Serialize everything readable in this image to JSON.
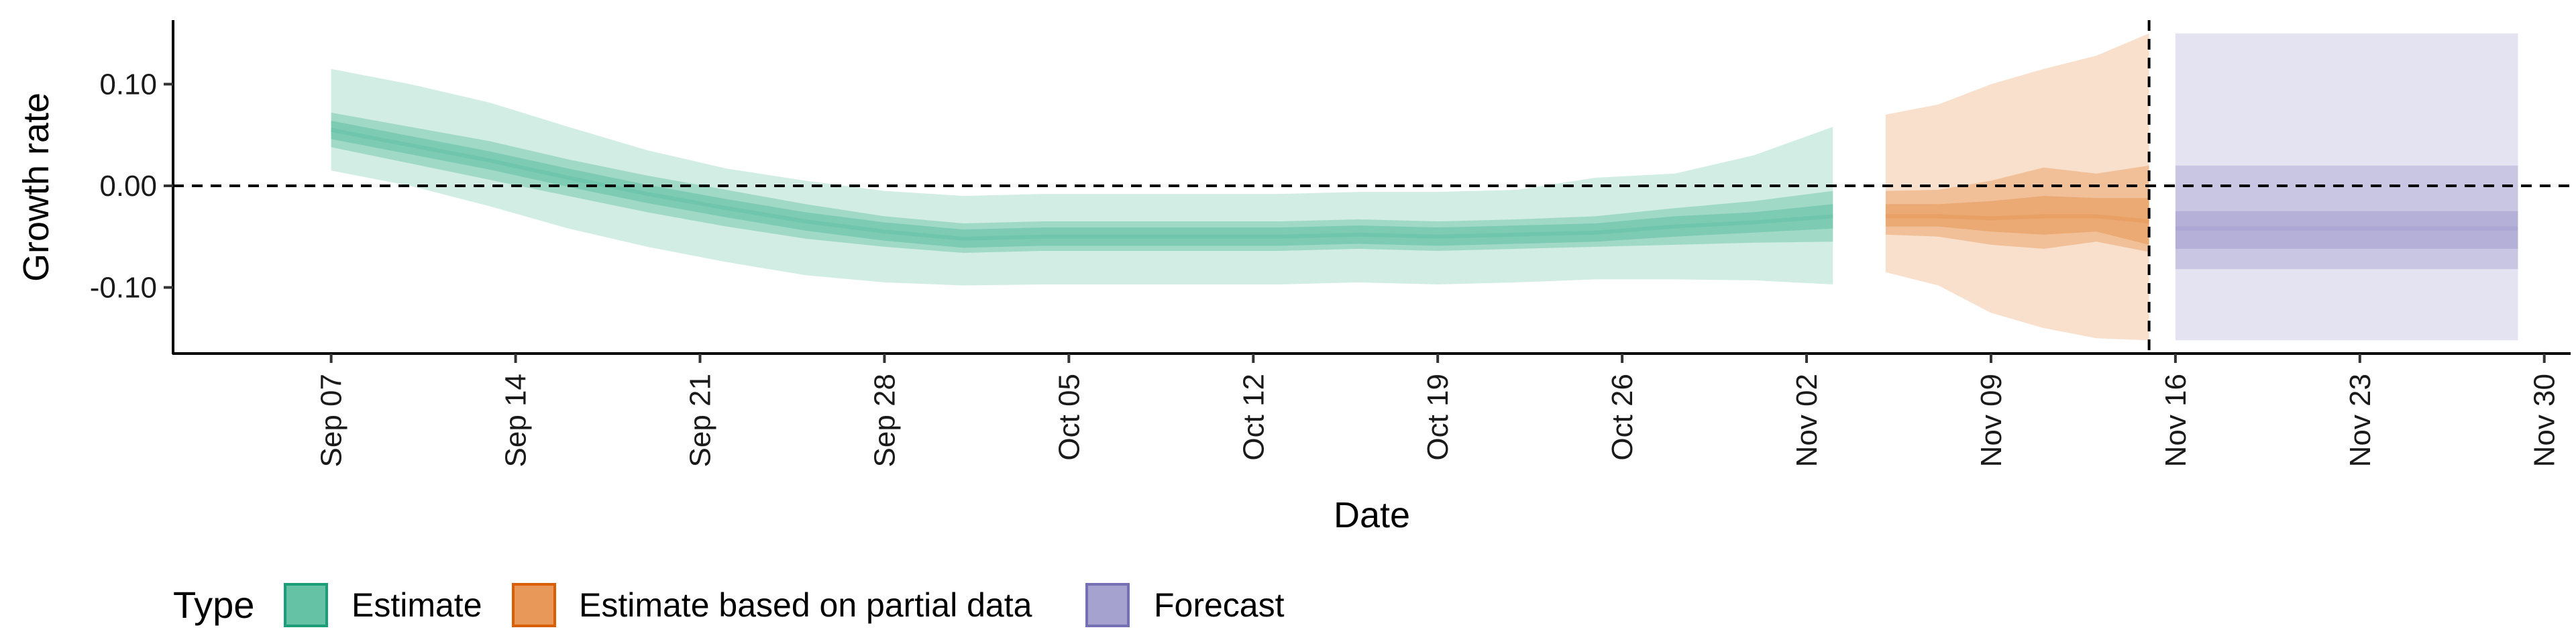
{
  "chart_data": {
    "type": "area",
    "xlabel": "Date",
    "ylabel": "Growth rate",
    "xlim": [
      "2020-09-01",
      "2020-12-01"
    ],
    "ylim": [
      -0.165,
      0.163
    ],
    "x_ticks": [
      "2020-09-07",
      "2020-09-14",
      "2020-09-21",
      "2020-09-28",
      "2020-10-05",
      "2020-10-12",
      "2020-10-19",
      "2020-10-26",
      "2020-11-02",
      "2020-11-09",
      "2020-11-16",
      "2020-11-23",
      "2020-11-30"
    ],
    "x_tick_labels": [
      "Sep 07",
      "Sep 14",
      "Sep 21",
      "Sep 28",
      "Oct 05",
      "Oct 12",
      "Oct 19",
      "Oct 26",
      "Nov 02",
      "Nov 09",
      "Nov 16",
      "Nov 23",
      "Nov 30"
    ],
    "y_ticks": [
      0.1,
      0.0,
      -0.1
    ],
    "y_tick_labels": [
      "0.10",
      "0.00",
      "-0.10"
    ],
    "reference_lines": {
      "horizontal_y": 0.0,
      "vertical_x": "2020-11-15"
    },
    "grid": false,
    "legend": {
      "title": "Type",
      "position": "bottom-left",
      "entries": [
        {
          "label": "Estimate",
          "fill": "#66c2a5",
          "stroke": "#1b9e77"
        },
        {
          "label": "Estimate based on partial data",
          "fill": "#e8995a",
          "stroke": "#d95f02"
        },
        {
          "label": "Forecast",
          "fill": "#a6a2d0",
          "stroke": "#7570b3"
        }
      ]
    },
    "series": [
      {
        "name": "Estimate",
        "color": "#1b9e77",
        "x": [
          "2020-09-07",
          "2020-09-10",
          "2020-09-13",
          "2020-09-16",
          "2020-09-19",
          "2020-09-22",
          "2020-09-25",
          "2020-09-28",
          "2020-10-01",
          "2020-10-04",
          "2020-10-07",
          "2020-10-10",
          "2020-10-13",
          "2020-10-16",
          "2020-10-19",
          "2020-10-22",
          "2020-10-25",
          "2020-10-28",
          "2020-10-31",
          "2020-11-03"
        ],
        "median": [
          0.055,
          0.04,
          0.025,
          0.008,
          -0.008,
          -0.022,
          -0.035,
          -0.045,
          -0.052,
          -0.05,
          -0.05,
          -0.05,
          -0.05,
          -0.048,
          -0.05,
          -0.048,
          -0.046,
          -0.04,
          -0.036,
          -0.03
        ],
        "lower_20": [
          0.046,
          0.031,
          0.016,
          -0.001,
          -0.017,
          -0.031,
          -0.044,
          -0.054,
          -0.061,
          -0.059,
          -0.059,
          -0.059,
          -0.059,
          -0.057,
          -0.059,
          -0.057,
          -0.055,
          -0.05,
          -0.046,
          -0.042
        ],
        "upper_20": [
          0.064,
          0.049,
          0.034,
          0.017,
          0.001,
          -0.013,
          -0.026,
          -0.036,
          -0.043,
          -0.041,
          -0.041,
          -0.041,
          -0.041,
          -0.039,
          -0.041,
          -0.039,
          -0.037,
          -0.03,
          -0.026,
          -0.018
        ],
        "lower_50": [
          0.038,
          0.022,
          0.006,
          -0.01,
          -0.026,
          -0.04,
          -0.052,
          -0.06,
          -0.066,
          -0.064,
          -0.064,
          -0.064,
          -0.064,
          -0.062,
          -0.064,
          -0.062,
          -0.06,
          -0.058,
          -0.056,
          -0.055
        ],
        "upper_50": [
          0.072,
          0.058,
          0.044,
          0.026,
          0.01,
          -0.004,
          -0.018,
          -0.03,
          -0.037,
          -0.035,
          -0.035,
          -0.035,
          -0.035,
          -0.033,
          -0.035,
          -0.033,
          -0.03,
          -0.022,
          -0.015,
          -0.005
        ],
        "lower_90": [
          0.015,
          0.0,
          -0.02,
          -0.042,
          -0.06,
          -0.075,
          -0.088,
          -0.095,
          -0.098,
          -0.097,
          -0.097,
          -0.097,
          -0.097,
          -0.095,
          -0.097,
          -0.095,
          -0.092,
          -0.092,
          -0.093,
          -0.097
        ],
        "upper_90": [
          0.115,
          0.1,
          0.082,
          0.058,
          0.035,
          0.017,
          0.005,
          -0.005,
          -0.01,
          -0.008,
          -0.008,
          -0.008,
          -0.008,
          -0.006,
          -0.006,
          -0.004,
          0.008,
          0.012,
          0.03,
          0.058
        ]
      },
      {
        "name": "Estimate based on partial data",
        "color": "#d95f02",
        "x": [
          "2020-11-05",
          "2020-11-07",
          "2020-11-09",
          "2020-11-11",
          "2020-11-13",
          "2020-11-15"
        ],
        "median": [
          -0.03,
          -0.03,
          -0.032,
          -0.03,
          -0.03,
          -0.035
        ],
        "lower_20": [
          -0.04,
          -0.04,
          -0.045,
          -0.048,
          -0.045,
          -0.058
        ],
        "upper_20": [
          -0.018,
          -0.018,
          -0.015,
          -0.01,
          -0.012,
          -0.012
        ],
        "lower_50": [
          -0.048,
          -0.05,
          -0.058,
          -0.062,
          -0.055,
          -0.065
        ],
        "upper_50": [
          -0.005,
          -0.004,
          0.005,
          0.018,
          0.012,
          0.02
        ],
        "lower_90": [
          -0.085,
          -0.098,
          -0.125,
          -0.14,
          -0.15,
          -0.152
        ],
        "upper_90": [
          0.07,
          0.08,
          0.1,
          0.115,
          0.128,
          0.15
        ]
      },
      {
        "name": "Forecast",
        "color": "#7570b3",
        "x": [
          "2020-11-16",
          "2020-11-29"
        ],
        "median": [
          -0.042,
          -0.042
        ],
        "lower_20": [
          -0.062,
          -0.062
        ],
        "upper_20": [
          -0.025,
          -0.025
        ],
        "lower_50": [
          -0.082,
          -0.082
        ],
        "upper_50": [
          0.02,
          0.02
        ],
        "lower_90": [
          -0.152,
          -0.152
        ],
        "upper_90": [
          0.15,
          0.15
        ]
      }
    ]
  }
}
